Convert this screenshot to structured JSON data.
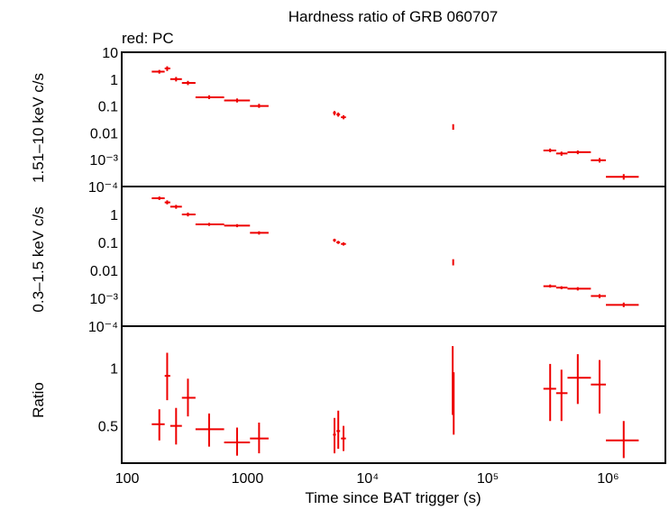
{
  "title": "Hardness ratio of GRB 060707",
  "legend": "red: PC",
  "xlabel": "Time since BAT trigger (s)",
  "colors": {
    "data": "#ee0000",
    "axes": "#000000",
    "background": "#ffffff"
  },
  "chart_data": [
    {
      "type": "scatter",
      "panel": "top",
      "ylabel": "1.51–10 keV c/s",
      "xscale": "log",
      "yscale": "log",
      "xlim": [
        90,
        3000000
      ],
      "ylim": [
        0.0001,
        10
      ],
      "yticks": [
        "10⁻⁴",
        "10⁻³",
        "0.01",
        "0.1",
        "1",
        "10"
      ],
      "points": [
        {
          "x": 185,
          "xlo": 160,
          "xhi": 205,
          "y": 1.9,
          "ylo": 1.6,
          "yhi": 2.2
        },
        {
          "x": 215,
          "xlo": 205,
          "xhi": 228,
          "y": 2.5,
          "ylo": 2.0,
          "yhi": 3.0
        },
        {
          "x": 255,
          "xlo": 228,
          "xhi": 285,
          "y": 1.0,
          "ylo": 0.82,
          "yhi": 1.2
        },
        {
          "x": 320,
          "xlo": 285,
          "xhi": 370,
          "y": 0.72,
          "ylo": 0.6,
          "yhi": 0.86
        },
        {
          "x": 480,
          "xlo": 370,
          "xhi": 640,
          "y": 0.21,
          "ylo": 0.18,
          "yhi": 0.25
        },
        {
          "x": 820,
          "xlo": 640,
          "xhi": 1050,
          "y": 0.16,
          "ylo": 0.135,
          "yhi": 0.19
        },
        {
          "x": 1250,
          "xlo": 1050,
          "xhi": 1500,
          "y": 0.1,
          "ylo": 0.085,
          "yhi": 0.12
        },
        {
          "x": 5300,
          "xlo": 5150,
          "xhi": 5450,
          "y": 0.055,
          "ylo": 0.045,
          "yhi": 0.065
        },
        {
          "x": 5700,
          "xlo": 5500,
          "xhi": 5900,
          "y": 0.048,
          "ylo": 0.04,
          "yhi": 0.057
        },
        {
          "x": 6300,
          "xlo": 6000,
          "xhi": 6600,
          "y": 0.038,
          "ylo": 0.032,
          "yhi": 0.045
        },
        {
          "x": 51500,
          "xlo": 51000,
          "xhi": 52000,
          "y": 0.017,
          "ylo": 0.013,
          "yhi": 0.021
        },
        {
          "x": 330000,
          "xlo": 290000,
          "xhi": 370000,
          "y": 0.0022,
          "ylo": 0.0019,
          "yhi": 0.0026
        },
        {
          "x": 410000,
          "xlo": 370000,
          "xhi": 460000,
          "y": 0.0017,
          "ylo": 0.0014,
          "yhi": 0.002
        },
        {
          "x": 560000,
          "xlo": 460000,
          "xhi": 720000,
          "y": 0.0019,
          "ylo": 0.0016,
          "yhi": 0.0022
        },
        {
          "x": 850000,
          "xlo": 720000,
          "xhi": 960000,
          "y": 0.00095,
          "ylo": 0.00078,
          "yhi": 0.00115
        },
        {
          "x": 1350000,
          "xlo": 960000,
          "xhi": 1800000,
          "y": 0.00023,
          "ylo": 0.00018,
          "yhi": 0.00029
        }
      ]
    },
    {
      "type": "scatter",
      "panel": "middle",
      "ylabel": "0.3–1.5 keV c/s",
      "xscale": "log",
      "yscale": "log",
      "xlim": [
        90,
        3000000
      ],
      "ylim": [
        0.0001,
        10
      ],
      "yticks": [
        "10⁻⁴",
        "10⁻³",
        "0.01",
        "0.1",
        "1"
      ],
      "points": [
        {
          "x": 185,
          "xlo": 160,
          "xhi": 205,
          "y": 3.8,
          "ylo": 3.3,
          "yhi": 4.4
        },
        {
          "x": 215,
          "xlo": 205,
          "xhi": 228,
          "y": 2.7,
          "ylo": 2.3,
          "yhi": 3.2
        },
        {
          "x": 255,
          "xlo": 228,
          "xhi": 285,
          "y": 1.9,
          "ylo": 1.6,
          "yhi": 2.2
        },
        {
          "x": 320,
          "xlo": 285,
          "xhi": 370,
          "y": 1.0,
          "ylo": 0.85,
          "yhi": 1.17
        },
        {
          "x": 480,
          "xlo": 370,
          "xhi": 640,
          "y": 0.44,
          "ylo": 0.39,
          "yhi": 0.5
        },
        {
          "x": 820,
          "xlo": 640,
          "xhi": 1050,
          "y": 0.4,
          "ylo": 0.35,
          "yhi": 0.45
        },
        {
          "x": 1250,
          "xlo": 1050,
          "xhi": 1500,
          "y": 0.22,
          "ylo": 0.19,
          "yhi": 0.25
        },
        {
          "x": 5300,
          "xlo": 5150,
          "xhi": 5450,
          "y": 0.12,
          "ylo": 0.105,
          "yhi": 0.135
        },
        {
          "x": 5700,
          "xlo": 5500,
          "xhi": 5900,
          "y": 0.1,
          "ylo": 0.088,
          "yhi": 0.113
        },
        {
          "x": 6300,
          "xlo": 6000,
          "xhi": 6600,
          "y": 0.088,
          "ylo": 0.077,
          "yhi": 0.1
        },
        {
          "x": 51500,
          "xlo": 51000,
          "xhi": 52000,
          "y": 0.02,
          "ylo": 0.015,
          "yhi": 0.025
        },
        {
          "x": 330000,
          "xlo": 290000,
          "xhi": 370000,
          "y": 0.0027,
          "ylo": 0.0024,
          "yhi": 0.0031
        },
        {
          "x": 410000,
          "xlo": 370000,
          "xhi": 460000,
          "y": 0.0024,
          "ylo": 0.0021,
          "yhi": 0.0027
        },
        {
          "x": 560000,
          "xlo": 460000,
          "xhi": 720000,
          "y": 0.0022,
          "ylo": 0.0019,
          "yhi": 0.0025
        },
        {
          "x": 850000,
          "xlo": 720000,
          "xhi": 960000,
          "y": 0.0012,
          "ylo": 0.001,
          "yhi": 0.0014
        },
        {
          "x": 1350000,
          "xlo": 960000,
          "xhi": 1800000,
          "y": 0.00058,
          "ylo": 0.00048,
          "yhi": 0.0007
        }
      ]
    },
    {
      "type": "scatter",
      "panel": "bottom",
      "ylabel": "Ratio",
      "xscale": "log",
      "yscale": "log",
      "xlim": [
        90,
        3000000
      ],
      "ylim": [
        0.32,
        1.65
      ],
      "yticks": [
        "0.5",
        "1"
      ],
      "xticks": [
        "100",
        "1000",
        "10⁴",
        "10⁵",
        "10⁶"
      ],
      "points": [
        {
          "x": 185,
          "xlo": 160,
          "xhi": 205,
          "y": 0.51,
          "ylo": 0.42,
          "yhi": 0.61
        },
        {
          "x": 215,
          "xlo": 205,
          "xhi": 228,
          "y": 0.91,
          "ylo": 0.68,
          "yhi": 1.2
        },
        {
          "x": 255,
          "xlo": 228,
          "xhi": 285,
          "y": 0.5,
          "ylo": 0.4,
          "yhi": 0.62
        },
        {
          "x": 320,
          "xlo": 285,
          "xhi": 370,
          "y": 0.7,
          "ylo": 0.56,
          "yhi": 0.88
        },
        {
          "x": 480,
          "xlo": 370,
          "xhi": 640,
          "y": 0.48,
          "ylo": 0.39,
          "yhi": 0.58
        },
        {
          "x": 820,
          "xlo": 640,
          "xhi": 1050,
          "y": 0.41,
          "ylo": 0.35,
          "yhi": 0.49
        },
        {
          "x": 1250,
          "xlo": 1050,
          "xhi": 1500,
          "y": 0.43,
          "ylo": 0.36,
          "yhi": 0.52
        },
        {
          "x": 5300,
          "xlo": 5150,
          "xhi": 5450,
          "y": 0.45,
          "ylo": 0.36,
          "yhi": 0.55
        },
        {
          "x": 5700,
          "xlo": 5500,
          "xhi": 5900,
          "y": 0.47,
          "ylo": 0.38,
          "yhi": 0.6
        },
        {
          "x": 6300,
          "xlo": 6000,
          "xhi": 6600,
          "y": 0.43,
          "ylo": 0.37,
          "yhi": 0.5
        },
        {
          "x": 51000,
          "xlo": 50700,
          "xhi": 51300,
          "y": 0.78,
          "ylo": 0.57,
          "yhi": 1.3
        },
        {
          "x": 52000,
          "xlo": 51700,
          "xhi": 52300,
          "y": 0.72,
          "ylo": 0.45,
          "yhi": 0.95
        },
        {
          "x": 330000,
          "xlo": 290000,
          "xhi": 370000,
          "y": 0.78,
          "ylo": 0.53,
          "yhi": 1.05
        },
        {
          "x": 410000,
          "xlo": 370000,
          "xhi": 460000,
          "y": 0.74,
          "ylo": 0.53,
          "yhi": 0.98
        },
        {
          "x": 560000,
          "xlo": 460000,
          "xhi": 720000,
          "y": 0.89,
          "ylo": 0.65,
          "yhi": 1.18
        },
        {
          "x": 850000,
          "xlo": 720000,
          "xhi": 960000,
          "y": 0.82,
          "ylo": 0.58,
          "yhi": 1.1
        },
        {
          "x": 1350000,
          "xlo": 960000,
          "xhi": 1800000,
          "y": 0.42,
          "ylo": 0.34,
          "yhi": 0.53
        }
      ]
    }
  ]
}
